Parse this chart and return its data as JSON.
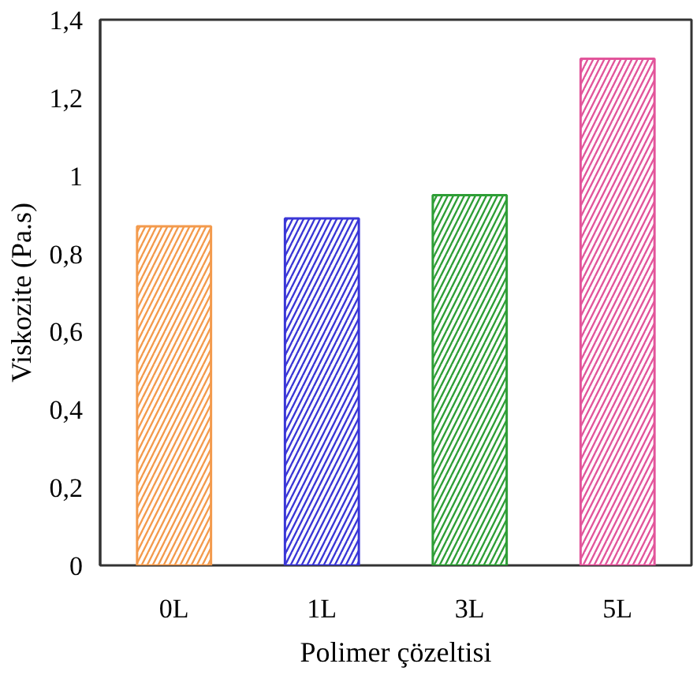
{
  "chart_data": {
    "type": "bar",
    "xlabel": "Polimer çözeltisi",
    "ylabel": "Viskozite (Pa.s)",
    "categories": [
      "0L",
      "1L",
      "3L",
      "5L"
    ],
    "values": [
      0.87,
      0.89,
      0.95,
      1.3
    ],
    "colors": [
      "#f39a4c",
      "#3a36d6",
      "#2e9e36",
      "#e2559b"
    ],
    "ylim": [
      0,
      1.4
    ],
    "yticks": [
      0,
      {
        "value": 0.2,
        "label": "0,2"
      },
      {
        "value": 0.4,
        "label": "0,4"
      },
      {
        "value": 0.6,
        "label": "0,6"
      },
      {
        "value": 0.8,
        "label": "0,8"
      },
      1,
      {
        "value": 1.2,
        "label": "1,2"
      },
      {
        "value": 1.4,
        "label": "1,4"
      }
    ],
    "grid": false
  }
}
